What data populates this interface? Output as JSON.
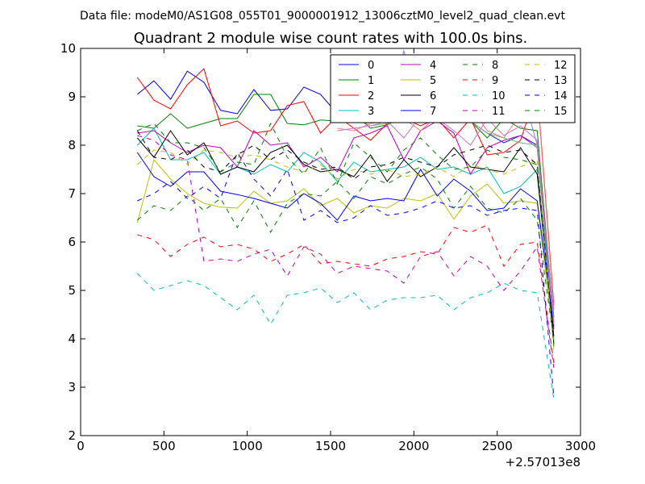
{
  "chart_data": {
    "type": "line",
    "suptitle": "Data file: modeM0/AS1G08_055T01_9000001912_13006cztM0_level2_quad_clean.evt",
    "title": "Quadrant 2 module wise count rates with 100.0s bins.",
    "xlabel": "",
    "ylabel": "",
    "x_offset_label": "+2.57013e8",
    "xlim": [
      0,
      3000
    ],
    "ylim": [
      2,
      10
    ],
    "xticks": [
      0,
      500,
      1000,
      1500,
      2000,
      2500,
      3000
    ],
    "yticks": [
      2,
      3,
      4,
      5,
      6,
      7,
      8,
      9,
      10
    ],
    "grid": false,
    "legend_position": "top-right",
    "legend_columns": 4,
    "x": [
      340,
      440,
      540,
      640,
      740,
      840,
      940,
      1040,
      1140,
      1240,
      1340,
      1440,
      1540,
      1640,
      1740,
      1840,
      1940,
      2040,
      2140,
      2240,
      2340,
      2440,
      2540,
      2640,
      2740,
      2840
    ],
    "series": [
      {
        "name": "0",
        "color": "#0000ff",
        "style": "solid",
        "values": [
          9.05,
          9.33,
          8.95,
          9.53,
          9.3,
          8.72,
          8.65,
          9.15,
          8.72,
          8.75,
          9.2,
          9.05,
          8.65,
          8.55,
          8.8,
          8.6,
          8.75,
          8.95,
          8.85,
          8.7,
          8.5,
          8.25,
          8.05,
          8.2,
          8.0,
          4.45
        ]
      },
      {
        "name": "1",
        "color": "#008000",
        "style": "solid",
        "values": [
          8.4,
          8.35,
          8.65,
          8.35,
          8.45,
          8.55,
          8.55,
          9.05,
          9.05,
          8.45,
          8.42,
          8.52,
          8.5,
          8.65,
          8.35,
          8.42,
          8.6,
          8.85,
          8.9,
          8.85,
          8.5,
          8.15,
          8.55,
          8.35,
          8.3,
          4.35
        ]
      },
      {
        "name": "2",
        "color": "#ff0000",
        "style": "solid",
        "values": [
          9.4,
          8.93,
          8.75,
          9.25,
          9.58,
          8.4,
          8.5,
          8.25,
          8.3,
          8.82,
          8.9,
          8.25,
          8.6,
          8.35,
          8.1,
          8.45,
          8.55,
          8.4,
          8.55,
          8.15,
          8.55,
          7.8,
          7.85,
          8.1,
          9.15,
          4.7
        ]
      },
      {
        "name": "3",
        "color": "#00bfbf",
        "style": "solid",
        "values": [
          8.0,
          8.35,
          7.7,
          7.7,
          7.85,
          7.4,
          7.55,
          7.4,
          7.6,
          7.45,
          7.85,
          7.65,
          7.25,
          7.65,
          7.45,
          7.5,
          7.55,
          7.75,
          7.5,
          7.55,
          7.4,
          7.55,
          7.0,
          7.15,
          7.5,
          4.35
        ]
      },
      {
        "name": "4",
        "color": "#bf00bf",
        "style": "solid",
        "values": [
          8.25,
          8.3,
          8.05,
          7.85,
          8.0,
          7.95,
          7.55,
          8.3,
          8.0,
          8.05,
          7.55,
          7.75,
          7.45,
          8.15,
          8.25,
          8.4,
          7.7,
          8.3,
          8.5,
          8.25,
          7.4,
          7.95,
          8.1,
          8.2,
          7.95,
          4.2
        ]
      },
      {
        "name": "5",
        "color": "#bfbf00",
        "style": "solid",
        "values": [
          6.4,
          7.7,
          7.3,
          7.0,
          6.8,
          6.72,
          6.7,
          7.05,
          6.8,
          6.85,
          7.1,
          6.75,
          6.9,
          6.6,
          6.75,
          6.7,
          6.9,
          6.85,
          7.0,
          6.47,
          6.95,
          7.2,
          6.8,
          6.85,
          6.8,
          4.0
        ]
      },
      {
        "name": "6",
        "color": "#000000",
        "style": "solid",
        "values": [
          8.15,
          7.75,
          8.3,
          7.8,
          8.05,
          7.4,
          7.55,
          7.45,
          7.85,
          8.0,
          7.6,
          7.45,
          7.5,
          7.35,
          7.8,
          7.25,
          7.7,
          7.35,
          7.55,
          7.95,
          7.55,
          7.5,
          7.45,
          7.95,
          7.4,
          4.05
        ]
      },
      {
        "name": "7",
        "color": "#0000ff",
        "style": "solid",
        "values": [
          7.85,
          7.35,
          7.15,
          7.45,
          7.45,
          7.05,
          6.98,
          6.9,
          6.8,
          6.7,
          7.0,
          6.8,
          6.45,
          6.95,
          6.85,
          6.9,
          6.85,
          7.5,
          6.95,
          7.3,
          7.05,
          6.65,
          6.7,
          7.1,
          6.85,
          4.25
        ]
      },
      {
        "name": "8",
        "color": "#008000",
        "style": "dashed",
        "values": [
          6.45,
          6.75,
          6.65,
          6.95,
          6.65,
          6.9,
          6.3,
          6.85,
          6.2,
          6.8,
          7.0,
          6.95,
          7.25,
          6.9,
          7.35,
          7.2,
          7.4,
          7.55,
          7.3,
          6.7,
          7.15,
          6.7,
          6.6,
          6.9,
          6.45,
          3.95
        ]
      },
      {
        "name": "9",
        "color": "#ff0000",
        "style": "dashed",
        "values": [
          6.15,
          6.05,
          5.7,
          5.95,
          6.1,
          5.9,
          5.95,
          5.85,
          5.6,
          5.75,
          5.95,
          5.55,
          5.6,
          5.55,
          5.5,
          5.65,
          5.7,
          5.8,
          5.75,
          6.3,
          6.2,
          6.35,
          5.5,
          5.95,
          6.0,
          3.5
        ]
      },
      {
        "name": "10",
        "color": "#00bfbf",
        "style": "dashed",
        "values": [
          5.35,
          5.0,
          5.1,
          5.2,
          5.1,
          4.85,
          4.6,
          4.9,
          4.3,
          4.9,
          4.95,
          5.05,
          4.75,
          4.95,
          4.6,
          4.8,
          4.85,
          4.85,
          4.9,
          4.6,
          4.85,
          4.95,
          5.15,
          5.0,
          4.95,
          2.75
        ]
      },
      {
        "name": "11",
        "color": "#bf00bf",
        "style": "dashed",
        "values": [
          8.2,
          8.1,
          7.8,
          7.7,
          5.6,
          5.65,
          5.6,
          5.75,
          5.85,
          5.3,
          5.9,
          5.75,
          5.35,
          5.5,
          5.45,
          5.4,
          5.15,
          5.7,
          5.8,
          5.3,
          5.7,
          5.5,
          5.0,
          5.4,
          5.9,
          3.4
        ]
      },
      {
        "name": "12",
        "color": "#bfbf00",
        "style": "dashed",
        "values": [
          7.6,
          7.9,
          7.85,
          7.6,
          7.9,
          7.85,
          7.75,
          7.8,
          7.7,
          7.55,
          7.45,
          7.6,
          7.3,
          7.5,
          7.4,
          7.5,
          7.35,
          7.4,
          7.55,
          7.35,
          7.6,
          7.5,
          7.4,
          7.55,
          7.7,
          3.8
        ]
      },
      {
        "name": "13",
        "color": "#000000",
        "style": "dashed",
        "values": [
          8.3,
          7.75,
          7.7,
          7.9,
          7.55,
          7.45,
          7.8,
          8.0,
          7.7,
          7.9,
          7.65,
          7.5,
          7.55,
          7.3,
          7.55,
          7.6,
          7.75,
          7.65,
          7.55,
          7.8,
          7.9,
          8.0,
          7.85,
          7.9,
          7.6,
          3.9
        ]
      },
      {
        "name": "14",
        "color": "#0000ff",
        "style": "dashed",
        "values": [
          6.85,
          7.0,
          7.25,
          6.9,
          7.15,
          6.9,
          7.85,
          7.3,
          6.95,
          7.5,
          6.45,
          6.65,
          6.4,
          6.5,
          6.75,
          6.55,
          6.6,
          6.7,
          6.85,
          6.7,
          6.75,
          6.55,
          6.65,
          6.7,
          6.65,
          2.8
        ]
      },
      {
        "name": "15",
        "color": "#008000",
        "style": "dashed",
        "values": [
          8.3,
          8.45,
          8.05,
          8.05,
          7.95,
          7.45,
          7.65,
          7.6,
          8.45,
          7.75,
          7.4,
          7.95,
          7.2,
          8.05,
          7.75,
          7.45,
          7.9,
          8.15,
          7.8,
          7.5,
          7.55,
          7.9,
          7.75,
          7.7,
          7.6,
          3.85
        ]
      },
      {
        "name": "",
        "color": "#8080ee",
        "style": "solid",
        "values": [
          null,
          null,
          null,
          null,
          null,
          null,
          null,
          null,
          null,
          null,
          null,
          null,
          8.65,
          8.65,
          8.85,
          8.6,
          9.95,
          8.65,
          9.35,
          9.1,
          9.05,
          9.35,
          9.15,
          9.25,
          8.0,
          4.3
        ]
      },
      {
        "name": "",
        "color": "#70b870",
        "style": "solid",
        "values": [
          null,
          null,
          null,
          null,
          null,
          null,
          null,
          null,
          null,
          null,
          null,
          null,
          8.55,
          8.6,
          8.4,
          8.45,
          8.85,
          8.55,
          8.85,
          8.85,
          8.5,
          8.25,
          8.15,
          8.05,
          8.0,
          4.4
        ]
      },
      {
        "name": "",
        "color": "#f08080",
        "style": "solid",
        "values": [
          null,
          null,
          null,
          null,
          null,
          null,
          null,
          null,
          null,
          null,
          null,
          null,
          8.35,
          8.3,
          8.45,
          8.5,
          8.55,
          8.3,
          8.6,
          9.0,
          8.8,
          8.3,
          8.15,
          8.65,
          9.1,
          4.6
        ]
      },
      {
        "name": "",
        "color": "#d070d0",
        "style": "solid",
        "values": [
          null,
          null,
          null,
          null,
          null,
          null,
          null,
          null,
          null,
          null,
          null,
          null,
          8.3,
          8.35,
          8.4,
          8.5,
          8.15,
          8.6,
          8.55,
          8.3,
          8.0,
          8.55,
          8.2,
          8.4,
          8.1,
          4.3
        ]
      }
    ]
  }
}
